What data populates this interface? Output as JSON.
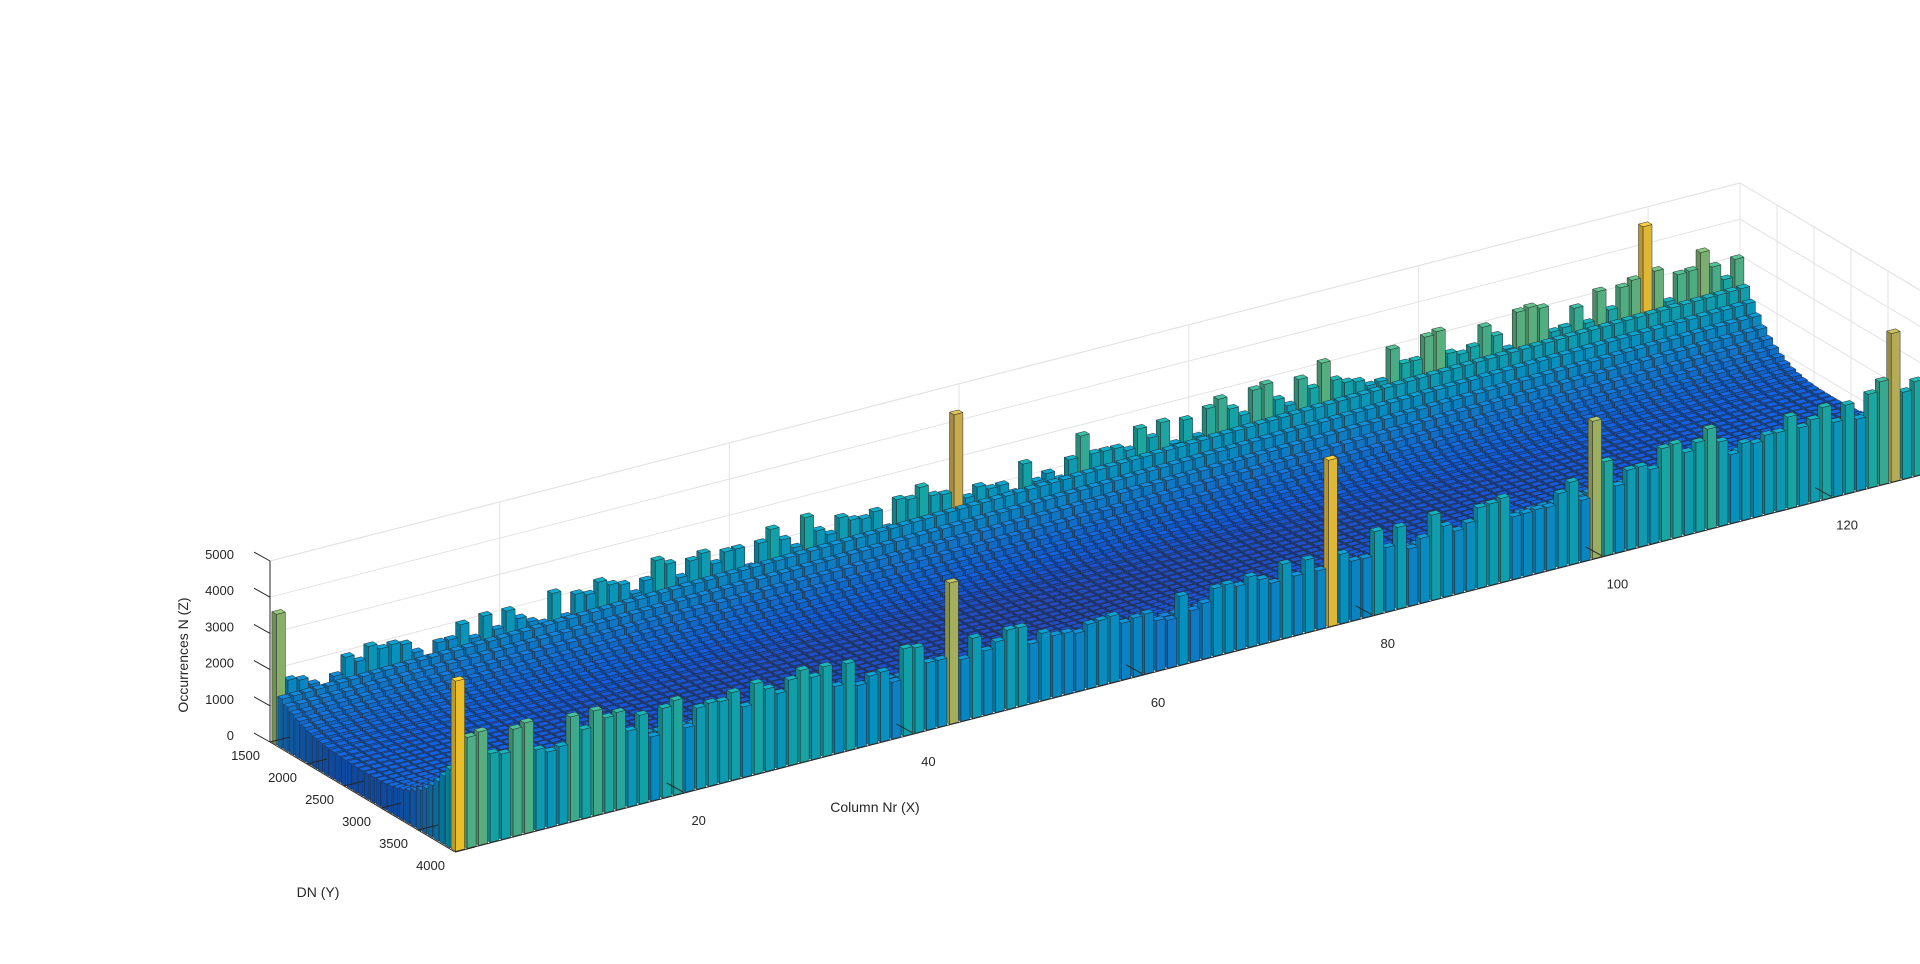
{
  "chart_data": {
    "type": "bar3",
    "xlabel": "Column Nr (X)",
    "ylabel": "DN (Y)",
    "zlabel": "Occurrences N (Z)",
    "x_ticks": [
      20,
      40,
      60,
      80,
      100,
      120
    ],
    "y_ticks": [
      1500,
      2000,
      2500,
      3000,
      3500,
      4000
    ],
    "z_ticks": [
      0,
      1000,
      2000,
      3000,
      4000,
      5000
    ],
    "x_range": [
      1,
      128
    ],
    "y_range": [
      1500,
      4000
    ],
    "z_range": [
      0,
      5000
    ],
    "grid": true,
    "colormap": "parula",
    "columns": 128,
    "dn_bins": 32,
    "surface_profile": {
      "x_samples": [
        1,
        20,
        40,
        60,
        80,
        100,
        128
      ],
      "front_edge_occurrences": [
        2500,
        2000,
        1800,
        1500,
        1700,
        2000,
        2200
      ],
      "center_occurrences": [
        700,
        500,
        400,
        350,
        400,
        500,
        650
      ],
      "back_edge_occurrences": [
        1500,
        1700,
        1900,
        2100,
        2300,
        2500,
        2700
      ]
    },
    "front_row_peaks": [
      {
        "column": 1,
        "occurrences": 4700
      },
      {
        "column": 44,
        "occurrences": 3900
      },
      {
        "column": 77,
        "occurrences": 4600
      },
      {
        "column": 100,
        "occurrences": 3800
      },
      {
        "column": 126,
        "occurrences": 4100
      }
    ],
    "back_row_peaks": [
      {
        "column": 1,
        "occurrences": 3600
      },
      {
        "column": 60,
        "occurrences": 4300
      },
      {
        "column": 120,
        "occurrences": 4600
      }
    ]
  }
}
